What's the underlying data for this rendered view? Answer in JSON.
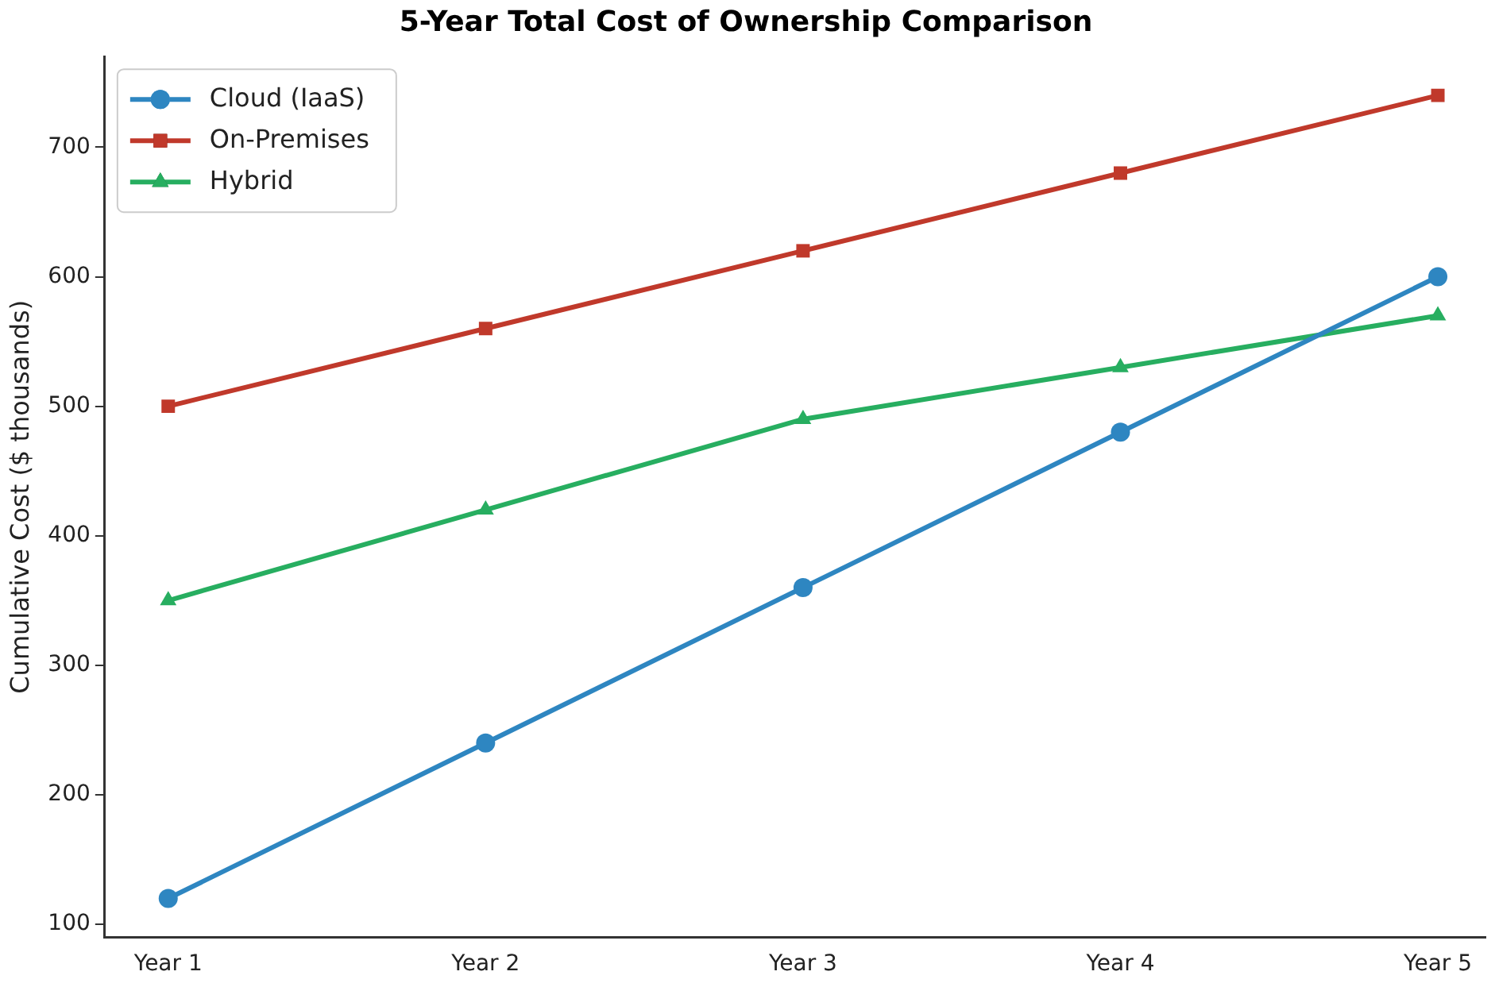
{
  "chart_data": {
    "type": "line",
    "title": "5-Year Total Cost of Ownership Comparison",
    "ylabel": "Cumulative Cost ($ thousands)",
    "categories": [
      "Year 1",
      "Year 2",
      "Year 3",
      "Year 4",
      "Year 5"
    ],
    "series": [
      {
        "name": "Cloud (IaaS)",
        "color": "#2e86c1",
        "marker": "circle",
        "values": [
          120,
          240,
          360,
          480,
          600
        ]
      },
      {
        "name": "On-Premises",
        "color": "#c0392b",
        "marker": "square",
        "values": [
          500,
          560,
          620,
          680,
          740
        ]
      },
      {
        "name": "Hybrid",
        "color": "#27ae60",
        "marker": "triangle",
        "values": [
          350,
          420,
          490,
          530,
          570
        ]
      }
    ],
    "ylim": [
      90,
      770
    ],
    "yticks": [
      100,
      200,
      300,
      400,
      500,
      600,
      700
    ],
    "grid": false,
    "legend": "top left",
    "line_style": "solid"
  }
}
